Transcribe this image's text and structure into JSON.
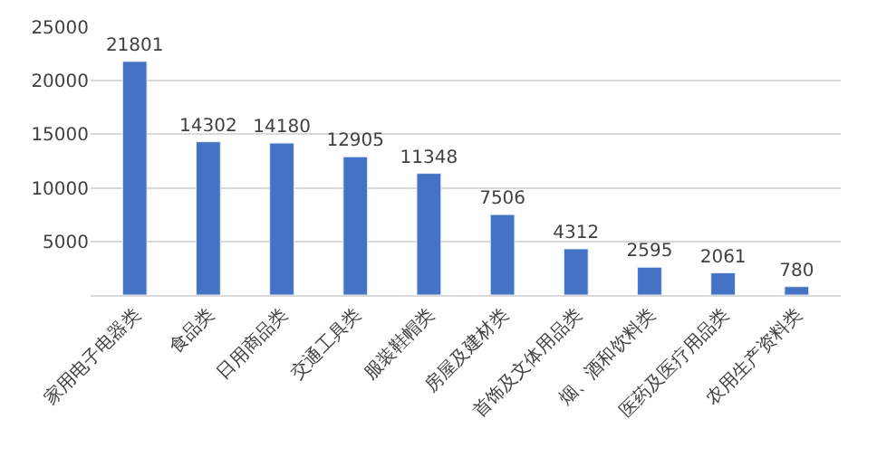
{
  "chart_data": {
    "type": "bar",
    "categories": [
      "家用电子电器类",
      "食品类",
      "日用商品类",
      "交通工具类",
      "服装鞋帽类",
      "房屋及建材类",
      "首饰及文体用品类",
      "烟、酒和饮料类",
      "医药及医疗用品类",
      "农用生产资料类"
    ],
    "values": [
      21801,
      14302,
      14180,
      12905,
      11348,
      7506,
      4312,
      2595,
      2061,
      780
    ],
    "color": "#4472c4",
    "ylim": [
      0,
      25000
    ],
    "yticks": [
      5000,
      10000,
      15000,
      20000,
      25000
    ],
    "grid": "y",
    "data_labels": true,
    "legend": false
  }
}
